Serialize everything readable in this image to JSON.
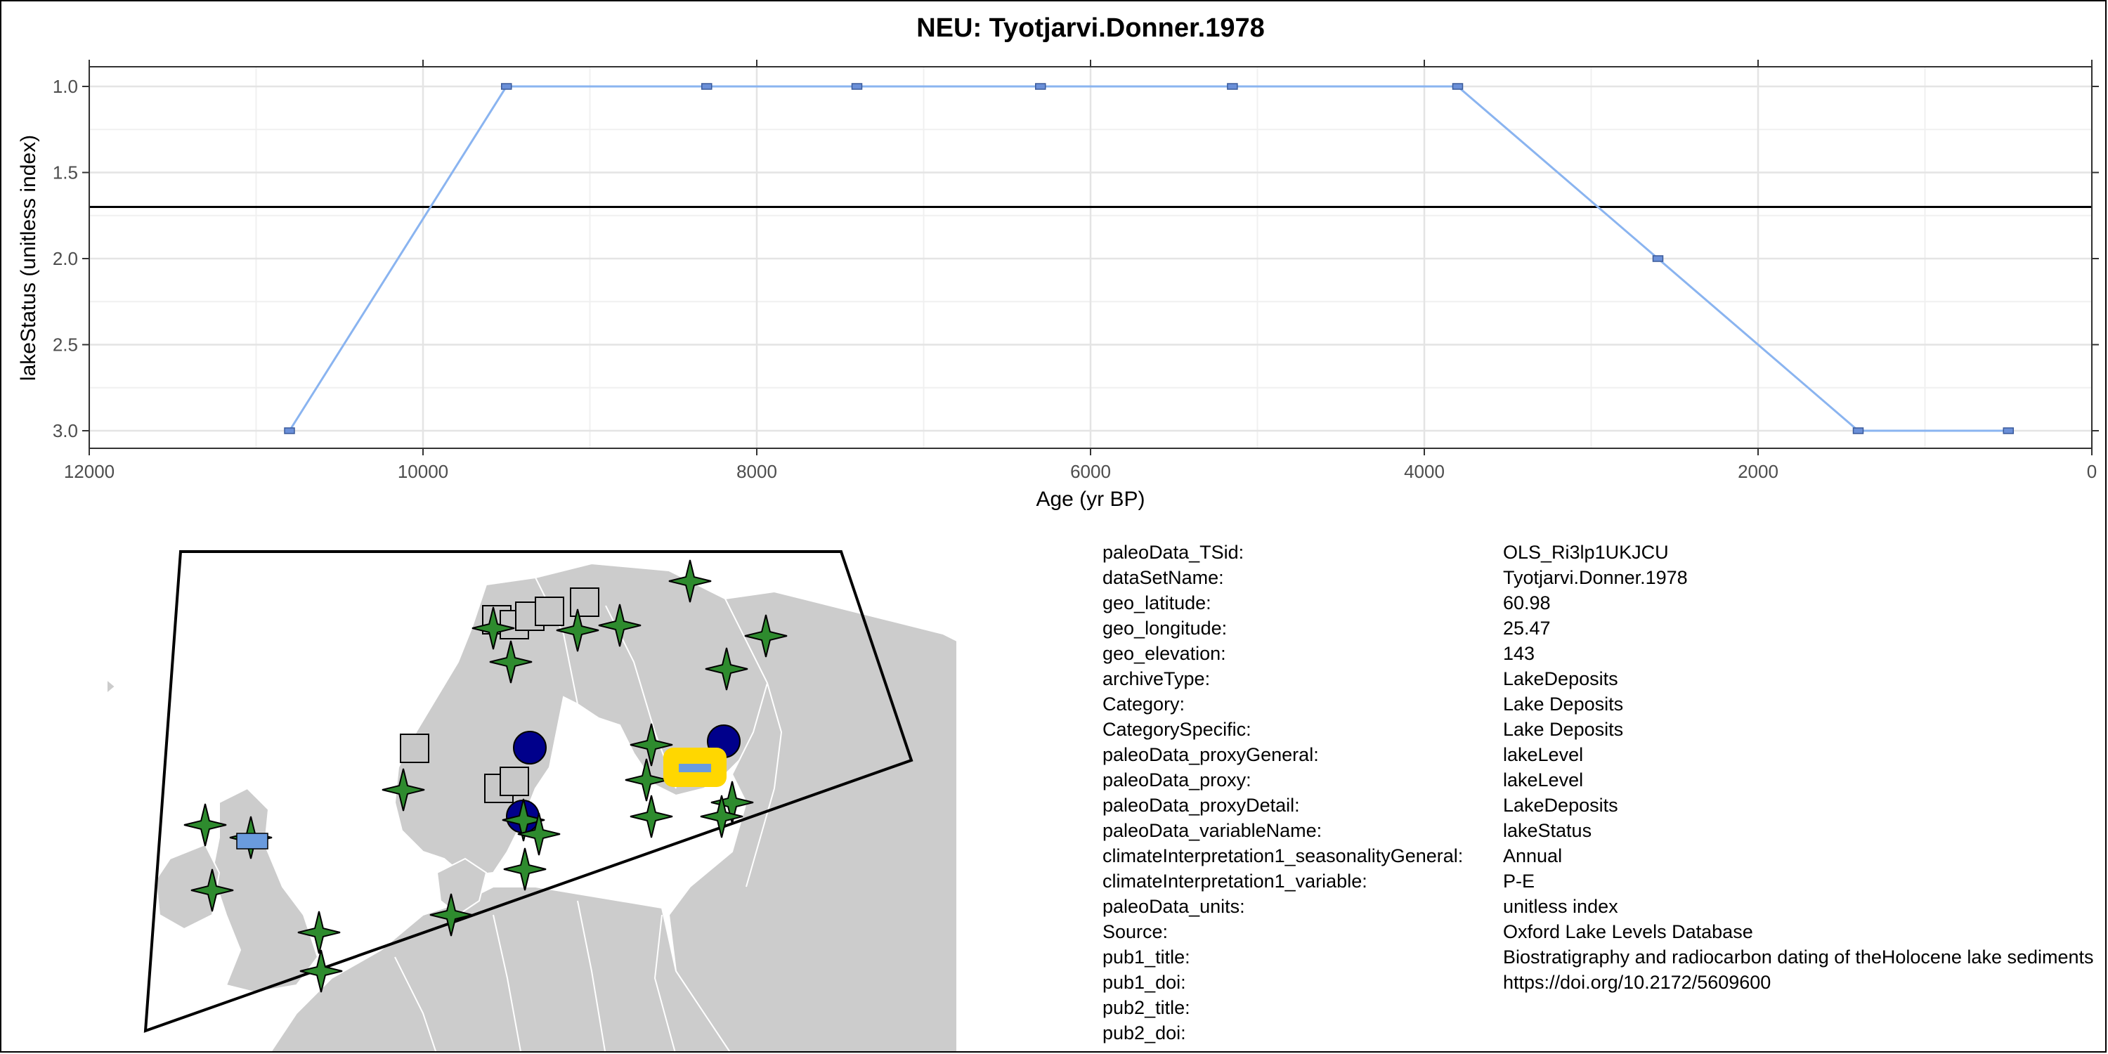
{
  "chart_data": {
    "type": "line",
    "title": "NEU: Tyotjarvi.Donner.1978",
    "xlabel": "Age (yr BP)",
    "ylabel": "lakeStatus (unitless index)",
    "xlim": [
      12000,
      0
    ],
    "ylim": [
      3.0,
      1.0
    ],
    "x_reversed": true,
    "y_reversed": true,
    "xticks": [
      12000,
      10000,
      8000,
      6000,
      4000,
      2000,
      0
    ],
    "xtick_labels": [
      "12000",
      "10000",
      "8000",
      "6000",
      "4000",
      "2000",
      "0"
    ],
    "yticks": [
      1.0,
      1.5,
      2.0,
      2.5,
      3.0
    ],
    "ytick_labels": [
      "1.0",
      "1.5",
      "2.0",
      "2.5",
      "3.0"
    ],
    "grid": true,
    "reference_line_y": 1.7,
    "series": [
      {
        "x": [
          10800,
          9500,
          8300,
          7400,
          6300,
          5150,
          3800,
          2600,
          1400,
          500
        ],
        "y": [
          3,
          1,
          1,
          1,
          1,
          1,
          1,
          2,
          3,
          3
        ]
      }
    ],
    "colors": {
      "line": "#8ab4f0",
      "marker_fill": "#6a8fd8",
      "reference_line": "#000000"
    }
  },
  "map": {
    "colors": {
      "land": "#cccccc",
      "borders": "#ffffff",
      "star": "#2e8b2e",
      "circle": "#00008b",
      "square": "#c8c8c8",
      "highlight": "#ffd700",
      "site_marker": "#6a9bde"
    },
    "marker_types": [
      "star",
      "circle",
      "square"
    ]
  },
  "metadata": {
    "rows": [
      {
        "key": "paleoData_TSid:",
        "value": "OLS_Ri3lp1UKJCU"
      },
      {
        "key": "dataSetName:",
        "value": "Tyotjarvi.Donner.1978"
      },
      {
        "key": "geo_latitude:",
        "value": "60.98"
      },
      {
        "key": "geo_longitude:",
        "value": "25.47"
      },
      {
        "key": "geo_elevation:",
        "value": "143"
      },
      {
        "key": "archiveType:",
        "value": "LakeDeposits"
      },
      {
        "key": "Category:",
        "value": "Lake Deposits"
      },
      {
        "key": "CategorySpecific:",
        "value": "Lake Deposits"
      },
      {
        "key": "paleoData_proxyGeneral:",
        "value": "lakeLevel"
      },
      {
        "key": "paleoData_proxy:",
        "value": "lakeLevel"
      },
      {
        "key": "paleoData_proxyDetail:",
        "value": "LakeDeposits"
      },
      {
        "key": "paleoData_variableName:",
        "value": "lakeStatus"
      },
      {
        "key": "climateInterpretation1_seasonalityGeneral:",
        "value": "Annual"
      },
      {
        "key": "climateInterpretation1_variable:",
        "value": "P-E"
      },
      {
        "key": "paleoData_units:",
        "value": "unitless index"
      },
      {
        "key": "Source:",
        "value": "Oxford Lake Levels Database"
      },
      {
        "key": "pub1_title:",
        "value": "Biostratigraphy and radiocarbon dating of theHolocene lake sediments"
      },
      {
        "key": "pub1_doi:",
        "value": "https://doi.org/10.2172/5609600"
      },
      {
        "key": "pub2_title:",
        "value": ""
      },
      {
        "key": "pub2_doi:",
        "value": ""
      }
    ]
  }
}
